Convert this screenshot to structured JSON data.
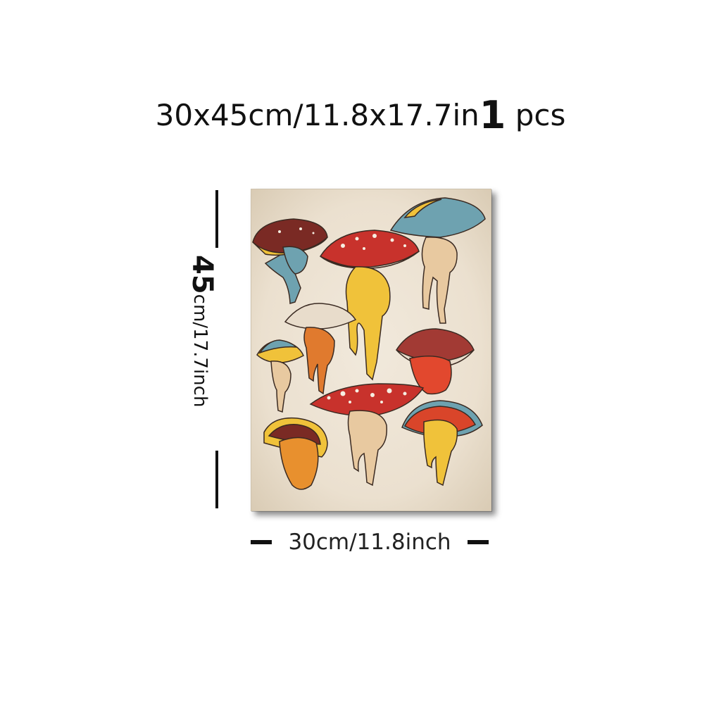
{
  "title": {
    "size_text": "30x45cm/11.8x17.7in",
    "quantity": "1",
    "quantity_unit": "pcs"
  },
  "height_label": {
    "number": "45",
    "text": "cm/17.7inch"
  },
  "width_label": {
    "text": "30cm/11.8inch"
  },
  "poster": {
    "artwork": "mushroom-illustration-art-print",
    "colors": {
      "paper": "#ece2d1",
      "red": "#c8322c",
      "yellow": "#f0c23a",
      "teal": "#6ea2b0",
      "orange": "#e07a2e",
      "maroon": "#7a2a24",
      "outline": "#3a2a22"
    }
  }
}
